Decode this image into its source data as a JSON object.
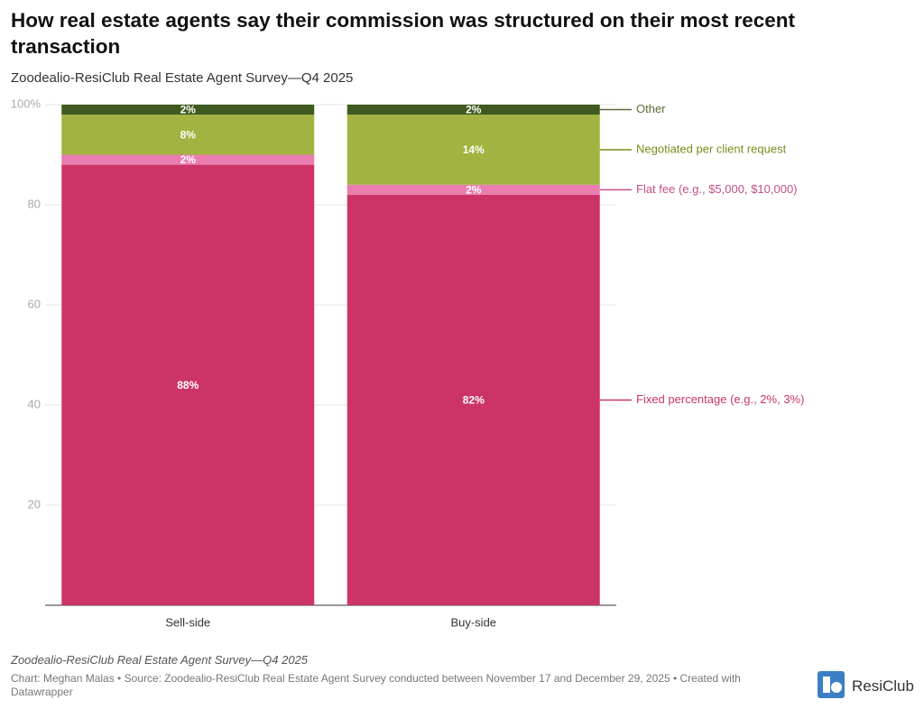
{
  "chart_data": {
    "type": "stacked-bar",
    "title": "How real estate agents say their commission was structured on their most recent transaction",
    "subtitle": "Zoodealio-ResiClub Real Estate Agent Survey—Q4 2025",
    "categories": [
      "Sell-side",
      "Buy-side"
    ],
    "series": [
      {
        "name": "Fixed percentage (e.g., 2%, 3%)",
        "color": "#cc3468",
        "label_color": "#c8356a",
        "values": [
          88,
          82
        ],
        "value_labels": [
          "88%",
          "82%"
        ]
      },
      {
        "name": "Flat fee (e.g., $5,000, $10,000)",
        "color": "#ea7db0",
        "label_color": "#c0508a",
        "values": [
          2,
          2
        ],
        "value_labels": [
          "2%",
          "2%"
        ]
      },
      {
        "name": "Negotiated per client request",
        "color": "#a3b341",
        "label_color": "#7a8c1c",
        "values": [
          8,
          14
        ],
        "value_labels": [
          "8%",
          "14%"
        ]
      },
      {
        "name": "Other",
        "color": "#3f5a1e",
        "label_color": "#5a6e3a",
        "values": [
          2,
          2
        ],
        "value_labels": [
          "2%",
          "2%"
        ]
      }
    ],
    "ylim": [
      0,
      100
    ],
    "yticks": [
      20,
      40,
      60,
      80,
      {
        "value": 100,
        "label": "100%"
      }
    ],
    "grid": true,
    "note": "Zoodealio-ResiClub Real Estate Agent Survey—Q4 2025",
    "source": "Chart: Meghan Malas • Source: Zoodealio-ResiClub Real Estate Agent Survey conducted between November 17 and December 29, 2025 • Created with Datawrapper",
    "logo": "ResiClub"
  }
}
